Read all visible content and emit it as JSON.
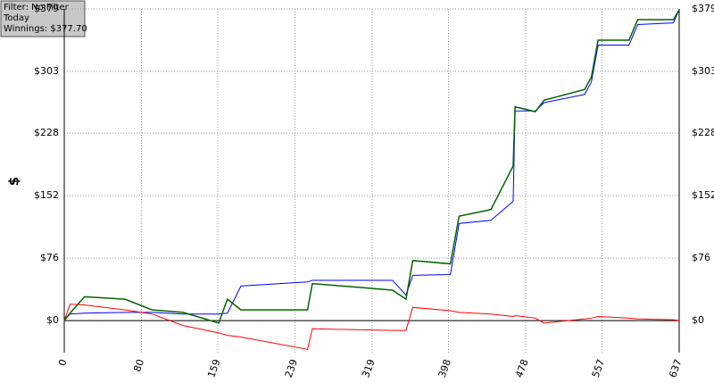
{
  "chart_data": {
    "type": "line",
    "annotations": [
      "Filter: No Filter",
      "Today",
      "Winnings: $377.70"
    ],
    "ylabel": "$",
    "x": [
      0,
      6,
      21,
      63,
      91,
      123,
      160,
      169,
      183,
      252,
      257,
      340,
      354,
      361,
      400,
      409,
      442,
      465,
      467,
      488,
      497,
      539,
      546,
      553,
      585,
      594,
      631,
      637
    ],
    "series": [
      {
        "color": "#0000ff",
        "values": [
          0,
          8,
          9,
          10,
          10,
          8,
          8,
          9,
          42,
          47,
          49,
          49,
          31,
          55,
          56,
          118,
          122,
          145,
          255,
          255,
          265,
          275,
          290,
          335,
          335,
          360,
          362,
          378
        ]
      },
      {
        "color": "#ff0000",
        "values": [
          0,
          20,
          19,
          13,
          8,
          -6,
          -15,
          -18,
          -20,
          -35,
          -10,
          -12,
          -12,
          16,
          12,
          10,
          8,
          5,
          6,
          3,
          -3,
          2,
          3,
          5,
          3,
          2,
          1,
          0
        ]
      },
      {
        "color": "#006400",
        "values": [
          0,
          9,
          29,
          26,
          13,
          10,
          -3,
          26,
          13,
          13,
          45,
          37,
          26,
          73,
          69,
          127,
          135,
          188,
          260,
          254,
          268,
          281,
          296,
          341,
          341,
          366,
          366,
          378
        ]
      }
    ],
    "xlim": [
      0,
      637
    ],
    "xticks": [
      0,
      80,
      159,
      239,
      319,
      398,
      478,
      557,
      637
    ],
    "ylim": [
      -39,
      379
    ],
    "yticks": [
      {
        "value": 0,
        "label": "$0"
      },
      {
        "value": 76,
        "label": "$76"
      },
      {
        "value": 152,
        "label": "$152"
      },
      {
        "value": 228,
        "label": "$228"
      },
      {
        "value": 303,
        "label": "$303"
      },
      {
        "value": 379,
        "label": "$379"
      }
    ],
    "grid": true
  }
}
